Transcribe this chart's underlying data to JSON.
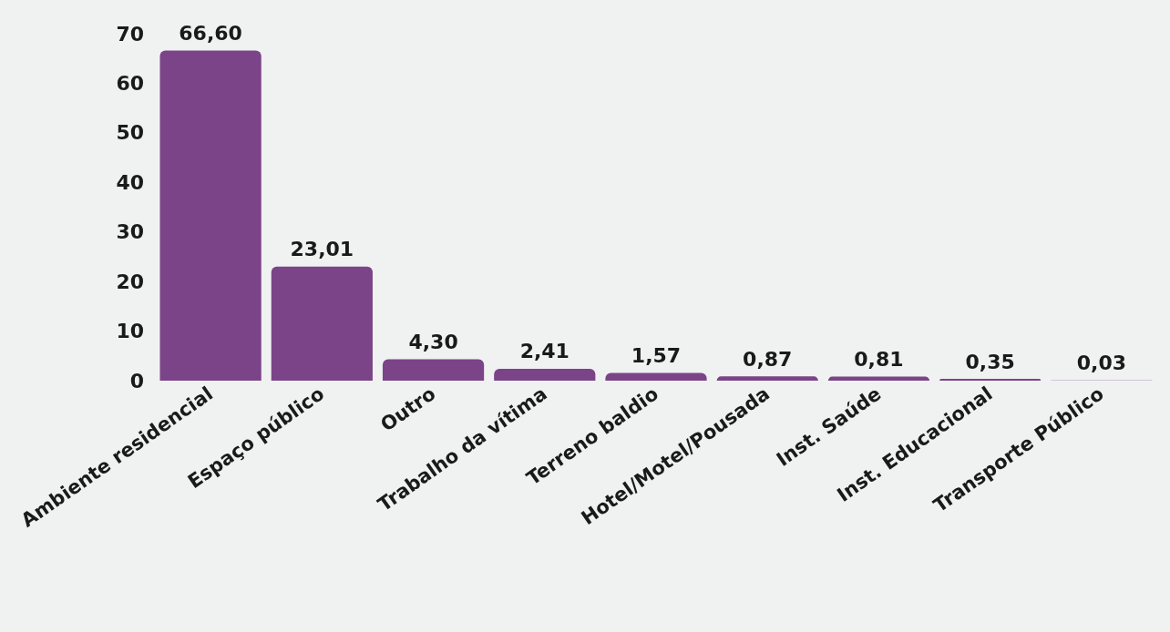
{
  "chart_data": {
    "type": "bar",
    "categories": [
      "Ambiente residencial",
      "Espaço público",
      "Outro",
      "Trabalho da vítima",
      "Terreno baldio",
      "Hotel/Motel/Pousada",
      "Inst. Saúde",
      "Inst. Educacional",
      "Transporte Público"
    ],
    "values": [
      66.6,
      23.01,
      4.3,
      2.41,
      1.57,
      0.87,
      0.81,
      0.35,
      0.03
    ],
    "value_labels": [
      "66,60",
      "23,01",
      "4,30",
      "2,41",
      "1,57",
      "0,87",
      "0,81",
      "0,35",
      "0,03"
    ],
    "color": "#7b4488",
    "ylim": [
      0,
      70
    ],
    "yticks": [
      0,
      10,
      20,
      30,
      40,
      50,
      60,
      70
    ],
    "grid": false
  }
}
